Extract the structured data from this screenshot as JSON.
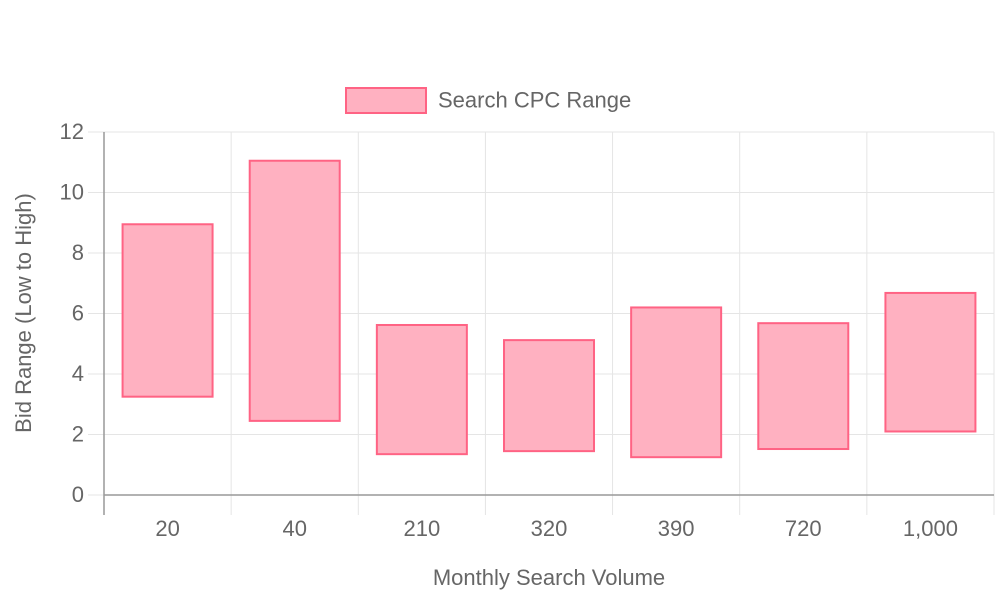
{
  "chart_data": {
    "type": "bar",
    "subtype": "floating-range",
    "categories": [
      "20",
      "40",
      "210",
      "320",
      "390",
      "720",
      "1,000"
    ],
    "series": [
      {
        "name": "Search CPC Range",
        "ranges": [
          [
            3.25,
            8.95
          ],
          [
            2.45,
            11.05
          ],
          [
            1.35,
            5.62
          ],
          [
            1.45,
            5.12
          ],
          [
            1.25,
            6.2
          ],
          [
            1.52,
            5.68
          ],
          [
            2.1,
            6.68
          ]
        ],
        "fill": "#ffb1c1",
        "stroke": "#ff6384"
      }
    ],
    "xlabel": "Monthly Search Volume",
    "ylabel": "Bid Range (Low to High)",
    "ylim": [
      0,
      12
    ],
    "yticks": [
      0,
      2,
      4,
      6,
      8,
      10,
      12
    ],
    "grid": true,
    "legend_position": "top"
  },
  "colors": {
    "grid": "#e5e5e5",
    "axis": "#999999",
    "text": "#666666"
  }
}
